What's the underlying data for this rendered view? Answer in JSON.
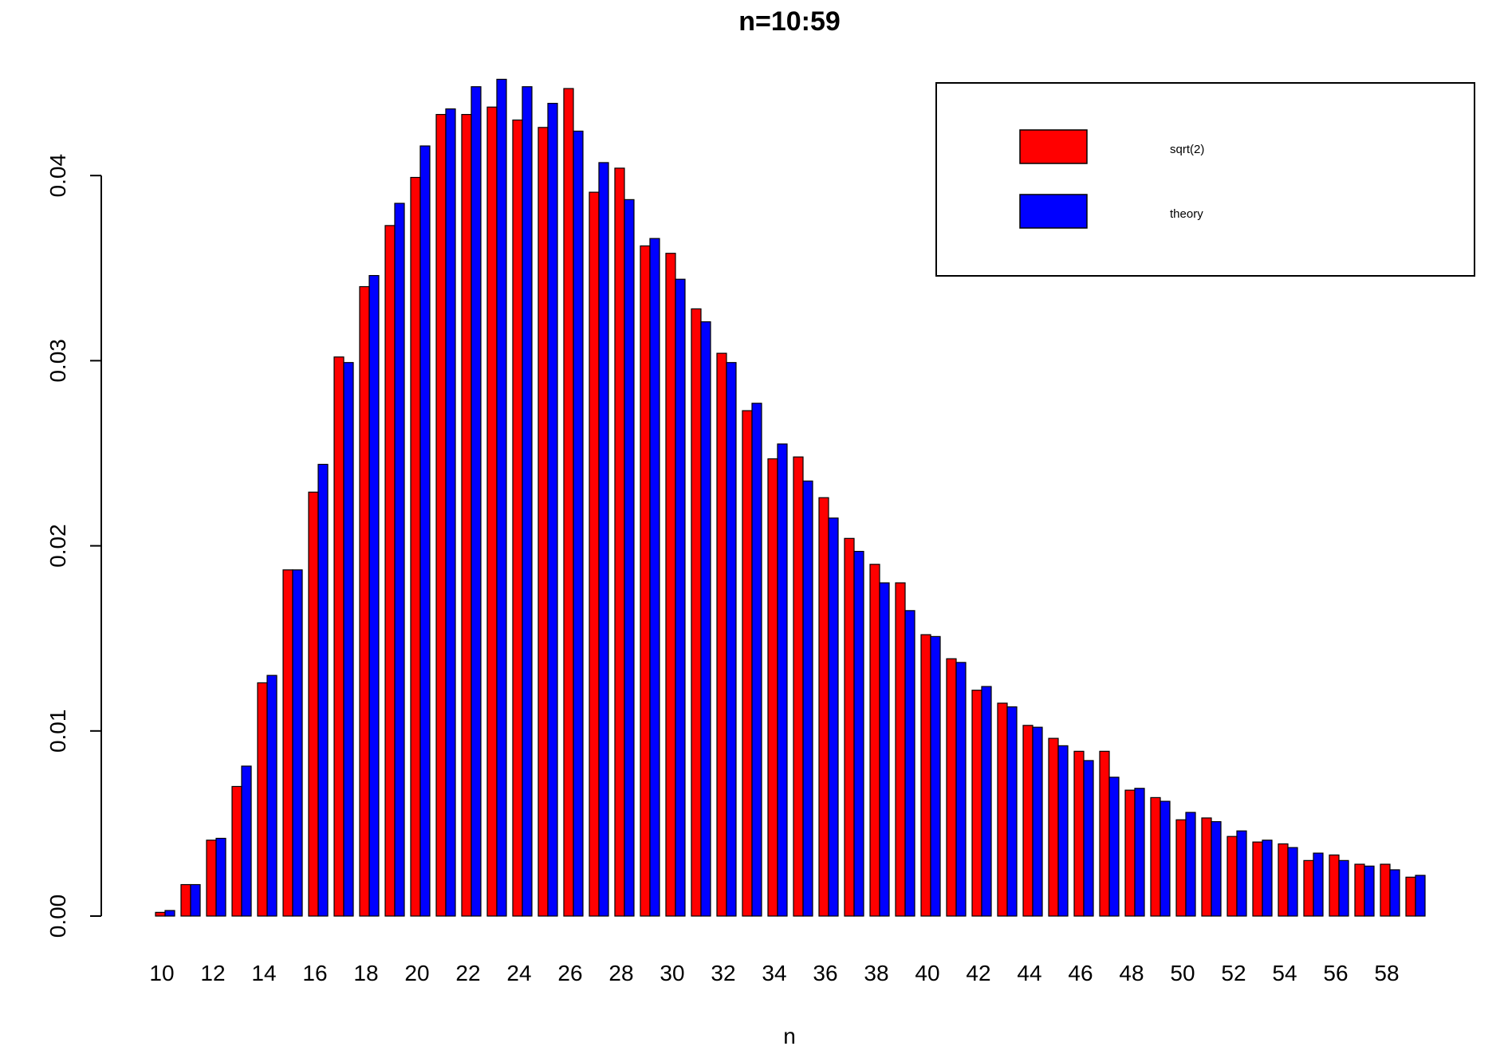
{
  "chart_data": {
    "type": "bar",
    "title": "n=10:59",
    "xlabel": "n",
    "ylabel": "",
    "ylim": [
      0,
      0.045
    ],
    "yticks": [
      "0.00",
      "0.01",
      "0.02",
      "0.03",
      "0.04"
    ],
    "xtick_labels": [
      "10",
      "12",
      "14",
      "16",
      "18",
      "20",
      "22",
      "24",
      "26",
      "28",
      "30",
      "32",
      "34",
      "36",
      "38",
      "40",
      "42",
      "44",
      "46",
      "48",
      "50",
      "52",
      "54",
      "56",
      "58"
    ],
    "categories": [
      10,
      11,
      12,
      13,
      14,
      15,
      16,
      17,
      18,
      19,
      20,
      21,
      22,
      23,
      24,
      25,
      26,
      27,
      28,
      29,
      30,
      31,
      32,
      33,
      34,
      35,
      36,
      37,
      38,
      39,
      40,
      41,
      42,
      43,
      44,
      45,
      46,
      47,
      48,
      49,
      50,
      51,
      52,
      53,
      54,
      55,
      56,
      57,
      58,
      59
    ],
    "legend_position": "top-right",
    "series": [
      {
        "name": "sqrt(2)",
        "color": "#ff0000",
        "values": [
          0.0002,
          0.0017,
          0.0041,
          0.007,
          0.0126,
          0.0187,
          0.0229,
          0.0302,
          0.034,
          0.0373,
          0.0399,
          0.0433,
          0.0433,
          0.0437,
          0.043,
          0.0426,
          0.0447,
          0.0391,
          0.0404,
          0.0362,
          0.0358,
          0.0328,
          0.0304,
          0.0273,
          0.0247,
          0.0248,
          0.0226,
          0.0204,
          0.019,
          0.018,
          0.0152,
          0.0139,
          0.0122,
          0.0115,
          0.0103,
          0.0096,
          0.0089,
          0.0089,
          0.0068,
          0.0064,
          0.0052,
          0.0053,
          0.0043,
          0.004,
          0.0039,
          0.003,
          0.0033,
          0.0028,
          0.0028,
          0.0021
        ]
      },
      {
        "name": "theory",
        "color": "#0000ff",
        "values": [
          0.0003,
          0.0017,
          0.0042,
          0.0081,
          0.013,
          0.0187,
          0.0244,
          0.0299,
          0.0346,
          0.0385,
          0.0416,
          0.0436,
          0.0448,
          0.0452,
          0.0448,
          0.0439,
          0.0424,
          0.0407,
          0.0387,
          0.0366,
          0.0344,
          0.0321,
          0.0299,
          0.0277,
          0.0255,
          0.0235,
          0.0215,
          0.0197,
          0.018,
          0.0165,
          0.0151,
          0.0137,
          0.0124,
          0.0113,
          0.0102,
          0.0092,
          0.0084,
          0.0075,
          0.0069,
          0.0062,
          0.0056,
          0.0051,
          0.0046,
          0.0041,
          0.0037,
          0.0034,
          0.003,
          0.0027,
          0.0025,
          0.0022
        ]
      }
    ]
  }
}
